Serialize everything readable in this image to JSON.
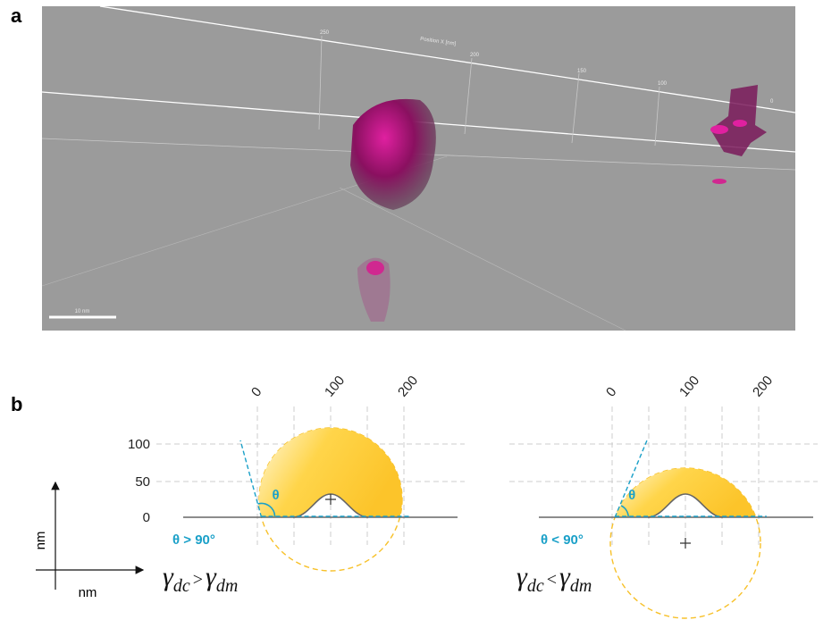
{
  "panel_a": {
    "label": "a",
    "axis_title": "Position X [nm]",
    "axis_ticks": [
      "250",
      "200",
      "150",
      "100",
      "0"
    ],
    "scale_bar": "10 nm"
  },
  "panel_b": {
    "label": "b",
    "x_ticks": [
      "0",
      "100",
      "200"
    ],
    "y_ticks": [
      "100",
      "50",
      "0"
    ],
    "angle_symbol": "θ",
    "left": {
      "angle_note": "θ > 90°",
      "relation": {
        "lhs": "γ",
        "lhs_sub": "dc",
        "op": ">",
        "rhs": "γ",
        "rhs_sub": "dm"
      }
    },
    "right": {
      "angle_note": "θ < 90°",
      "relation": {
        "lhs": "γ",
        "lhs_sub": "dc",
        "op": "<",
        "rhs": "γ",
        "rhs_sub": "dm"
      }
    },
    "axes": {
      "x_label": "nm",
      "y_label": "nm"
    }
  }
}
